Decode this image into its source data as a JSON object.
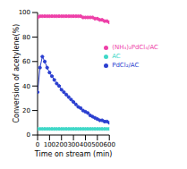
{
  "chart_data": {
    "type": "line",
    "x_label": "Time on stream (min)",
    "y_label": "Conversion of acetylene(%)",
    "x": [
      0,
      20,
      40,
      60,
      80,
      100,
      120,
      140,
      160,
      180,
      200,
      220,
      240,
      260,
      280,
      300,
      320,
      340,
      360,
      380,
      400,
      420,
      440,
      460,
      480,
      500,
      520,
      540,
      560,
      580,
      600
    ],
    "series": [
      {
        "name": "(NH₄)₂PdCl₄/AC",
        "color": "#ee3fa8",
        "marker": "circle",
        "values": [
          96,
          97,
          97,
          97,
          97,
          97,
          97,
          97,
          97,
          97,
          97,
          97,
          97,
          97,
          97,
          97,
          97,
          97,
          97,
          96,
          96,
          96,
          96,
          96,
          95,
          95,
          94,
          94,
          93,
          93,
          92
        ]
      },
      {
        "name": "PdCl₂/AC",
        "color": "#2b3fd0",
        "marker": "circle",
        "values": [
          35,
          55,
          64,
          60,
          55,
          51,
          48,
          45,
          42,
          40,
          37,
          35,
          33,
          31,
          29,
          27,
          25,
          23,
          22,
          20,
          19,
          18,
          16,
          15,
          14,
          13,
          12,
          12,
          11,
          11,
          10
        ]
      },
      {
        "name": "AC",
        "color": "#3fd8c8",
        "marker": "circle",
        "values": [
          5,
          5,
          5,
          5,
          5,
          5,
          5,
          5,
          5,
          5,
          5,
          5,
          5,
          5,
          5,
          5,
          5,
          5,
          5,
          5,
          5,
          5,
          5,
          5,
          5,
          5,
          5,
          5,
          5,
          5,
          5
        ]
      }
    ],
    "xlim": [
      0,
      600
    ],
    "xticks": [
      0,
      100,
      200,
      300,
      400,
      500,
      600
    ],
    "ylim": [
      0,
      100
    ],
    "yticks": [
      0,
      20,
      40,
      60,
      80,
      100
    ],
    "legend": "right",
    "grid": false
  }
}
